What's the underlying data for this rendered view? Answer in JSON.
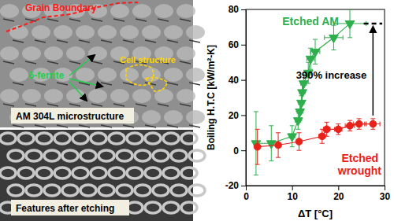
{
  "chart_data": {
    "type": "scatter",
    "x_label": "ΔT [°C]",
    "y_label": "Boiling H.T.C [kW/m²-K]",
    "xlim": [
      0,
      30
    ],
    "ylim": [
      -20,
      80
    ],
    "xticks": [
      0,
      10,
      20,
      30
    ],
    "yticks": [
      -20,
      0,
      20,
      40,
      60,
      80
    ],
    "grid": false,
    "series": [
      {
        "name": "Etched AM",
        "color": "#2fae4e",
        "marker": "triangle-down",
        "line_style": "solid",
        "x": [
          2.2,
          5.5,
          10.0,
          11.3,
          11.7,
          12.0,
          12.2,
          12.5,
          13.5,
          14.0,
          15.0,
          19.0,
          22.5
        ],
        "values": [
          4,
          4,
          8,
          17,
          22,
          27,
          33,
          38,
          44,
          52,
          56,
          64,
          72
        ],
        "y_error": [
          18,
          10,
          6,
          5,
          5,
          4,
          5,
          5,
          6,
          6,
          7,
          7,
          8
        ],
        "x_error": [
          0.5,
          0.5,
          0.6,
          0.6,
          0.6,
          0.6,
          0.6,
          0.6,
          0.7,
          0.8,
          1.0,
          2.0,
          3.5
        ]
      },
      {
        "name": "Etched wrought",
        "color": "#e8221b",
        "marker": "circle",
        "line_style": "solid",
        "x": [
          2.5,
          7.0,
          11.5,
          16.5,
          17.5,
          20.0,
          22.5,
          24.5,
          27.5
        ],
        "values": [
          2,
          3,
          5,
          8,
          12,
          12,
          14,
          15,
          15
        ],
        "y_error": [
          10,
          7,
          5,
          4,
          4,
          3,
          3,
          3,
          3
        ],
        "x_error": [
          0.5,
          0.5,
          0.5,
          0.7,
          0.7,
          0.8,
          1.0,
          1.2,
          1.5
        ]
      }
    ],
    "annotations": [
      {
        "text": "390% increase"
      }
    ],
    "reference": {
      "y": 72,
      "x": [
        25.5,
        29.5
      ],
      "line_style": "dashed"
    }
  },
  "images": [
    {
      "caption": "AM 304L microstructure",
      "labels": [
        "Grain Boundary",
        "δ-ferrite",
        "Cell structure"
      ]
    },
    {
      "caption": "Features after etching"
    }
  ]
}
